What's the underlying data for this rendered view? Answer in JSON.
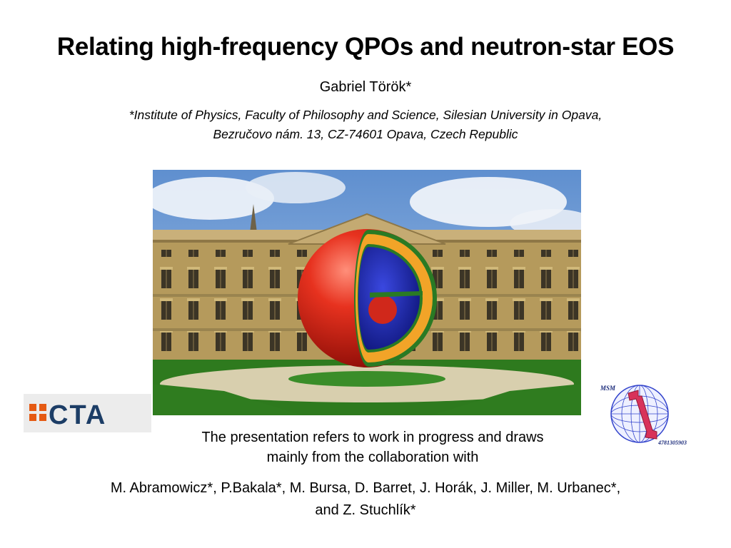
{
  "slide": {
    "title": "Relating high-frequency QPOs and neutron-star EOS",
    "author": "Gabriel Török*",
    "affiliation_line1": "*Institute of Physics,  Faculty of Philosophy and Science, Silesian University in Opava,",
    "affiliation_line2": "Bezručovo nám. 13, CZ-74601 Opava, Czech Republic",
    "note_line1": "The presentation refers to work in progress and draws",
    "note_line2": "mainly from the collaboration with",
    "collaborators_line1": "M. Abramowicz*, P.Bakala*, M. Bursa, D. Barret, J. Horák, J. Miller, M. Urbanec*,",
    "collaborators_line2": "and Z. Stuchlík*"
  },
  "logos": {
    "cta_text": "CTA",
    "msm_label": "MSM",
    "msm_number": "4781305903"
  },
  "colors": {
    "cta_orange": "#e55a13",
    "cta_navy": "#1c3d66",
    "star_red": "#e0261a",
    "star_blue": "#1b27b8",
    "star_orange": "#f2a428",
    "star_green": "#2c7a26",
    "msm_sphere": "#3344cc",
    "msm_tube": "#d8325a"
  },
  "icons": {
    "photo": "neutron-star-over-building-image",
    "cta_logo": "cta-logo",
    "msm_logo": "msm-logo"
  }
}
